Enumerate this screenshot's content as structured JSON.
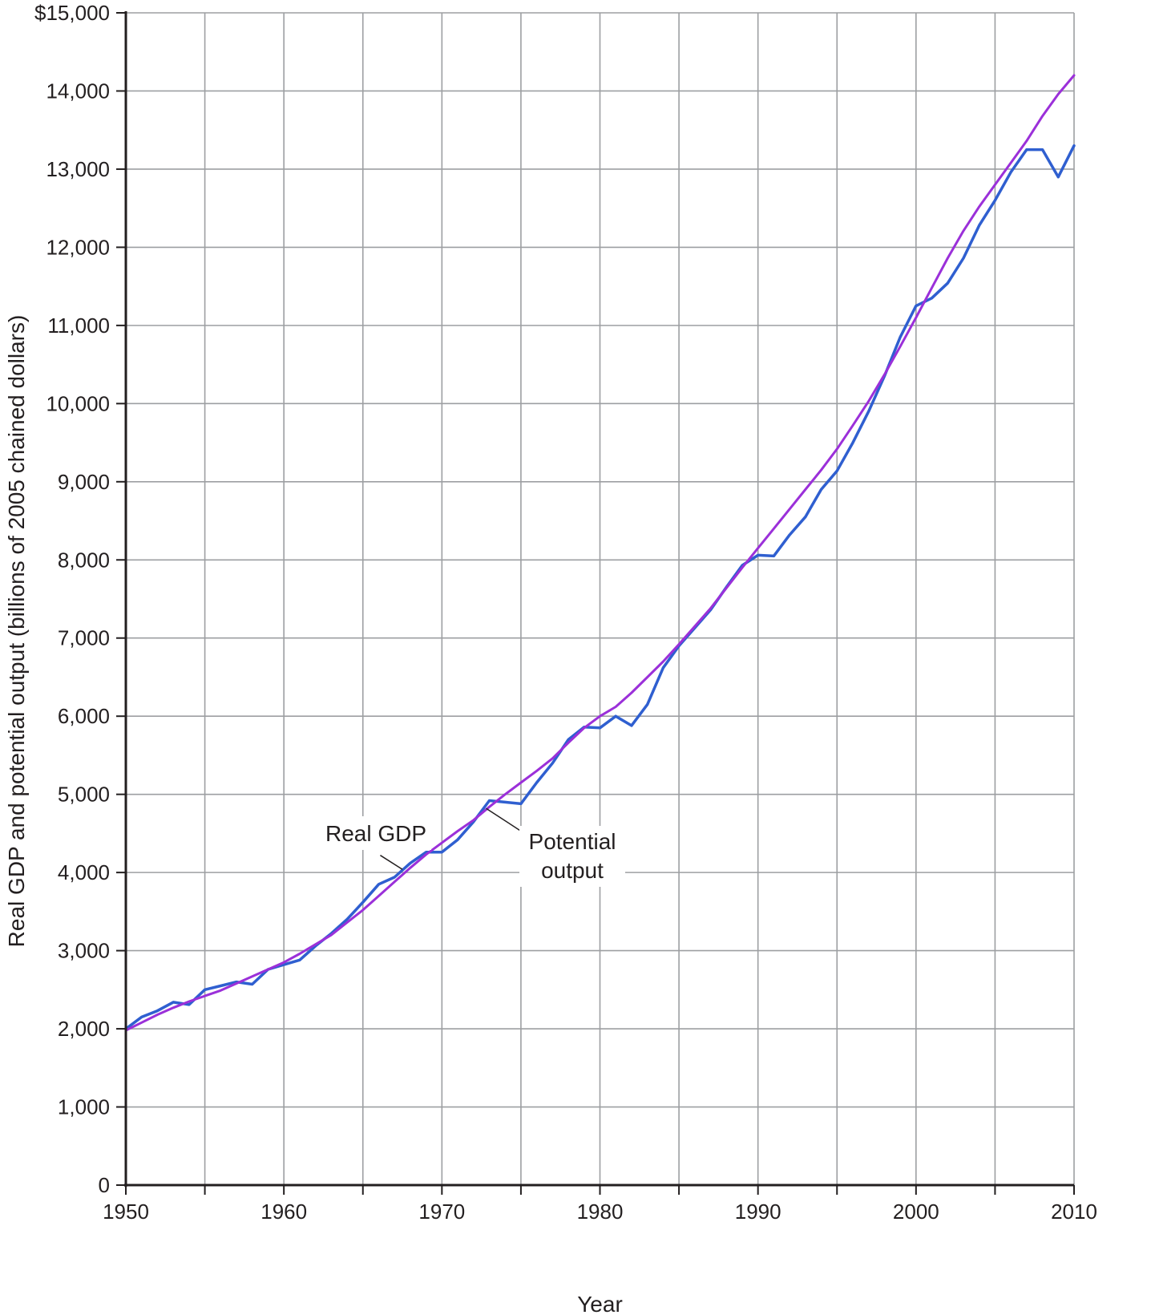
{
  "chart_data": {
    "type": "line",
    "title": "",
    "xlabel": "Year",
    "ylabel": "Real GDP and potential output (billions of 2005 chained dollars)",
    "xlim": [
      1950,
      2010
    ],
    "ylim": [
      0,
      15000
    ],
    "x_ticks": [
      1950,
      1960,
      1970,
      1980,
      1990,
      2000,
      2010
    ],
    "x_tick_labels": [
      "1950",
      "1960",
      "1970",
      "1980",
      "1990",
      "2000",
      "2010"
    ],
    "y_ticks": [
      0,
      1000,
      2000,
      3000,
      4000,
      5000,
      6000,
      7000,
      8000,
      9000,
      10000,
      11000,
      12000,
      13000,
      14000,
      15000
    ],
    "y_tick_labels": [
      "0",
      "1,000",
      "2,000",
      "3,000",
      "4,000",
      "5,000",
      "6,000",
      "7,000",
      "8,000",
      "9,000",
      "10,000",
      "11,000",
      "12,000",
      "13,000",
      "14,000",
      "$15,000"
    ],
    "grid": true,
    "series": [
      {
        "name": "Real GDP",
        "color": "#2f5fd0",
        "x": [
          1950,
          1951,
          1952,
          1953,
          1954,
          1955,
          1956,
          1957,
          1958,
          1959,
          1960,
          1961,
          1962,
          1963,
          1964,
          1965,
          1966,
          1967,
          1968,
          1969,
          1970,
          1971,
          1972,
          1973,
          1974,
          1975,
          1976,
          1977,
          1978,
          1979,
          1980,
          1981,
          1982,
          1983,
          1984,
          1985,
          1986,
          1987,
          1988,
          1989,
          1990,
          1991,
          1992,
          1993,
          1994,
          1995,
          1996,
          1997,
          1998,
          1999,
          2000,
          2001,
          2002,
          2003,
          2004,
          2005,
          2006,
          2007,
          2008,
          2009,
          2010
        ],
        "y": [
          2000,
          2150,
          2230,
          2340,
          2310,
          2500,
          2550,
          2600,
          2570,
          2760,
          2820,
          2880,
          3060,
          3220,
          3400,
          3620,
          3850,
          3940,
          4120,
          4260,
          4260,
          4420,
          4650,
          4920,
          4900,
          4880,
          5150,
          5400,
          5700,
          5860,
          5850,
          6000,
          5880,
          6150,
          6620,
          6900,
          7130,
          7360,
          7650,
          7930,
          8060,
          8050,
          8320,
          8550,
          8900,
          9140,
          9500,
          9900,
          10350,
          10850,
          11250,
          11350,
          11540,
          11860,
          12280,
          12600,
          12960,
          13250,
          13250,
          12900,
          13300
        ]
      },
      {
        "name": "Potential output",
        "color": "#9b30d9",
        "x": [
          1950,
          1951,
          1952,
          1953,
          1954,
          1955,
          1956,
          1957,
          1958,
          1959,
          1960,
          1961,
          1962,
          1963,
          1964,
          1965,
          1966,
          1967,
          1968,
          1969,
          1970,
          1971,
          1972,
          1973,
          1974,
          1975,
          1976,
          1977,
          1978,
          1979,
          1980,
          1981,
          1982,
          1983,
          1984,
          1985,
          1986,
          1987,
          1988,
          1989,
          1990,
          1991,
          1992,
          1993,
          1994,
          1995,
          1996,
          1997,
          1998,
          1999,
          2000,
          2001,
          2002,
          2003,
          2004,
          2005,
          2006,
          2007,
          2008,
          2009,
          2010
        ],
        "y": [
          1980,
          2080,
          2180,
          2270,
          2350,
          2420,
          2490,
          2580,
          2670,
          2760,
          2850,
          2960,
          3080,
          3200,
          3360,
          3520,
          3700,
          3880,
          4060,
          4230,
          4380,
          4530,
          4670,
          4840,
          5000,
          5150,
          5300,
          5460,
          5660,
          5850,
          6000,
          6120,
          6300,
          6500,
          6700,
          6920,
          7150,
          7380,
          7640,
          7900,
          8150,
          8400,
          8650,
          8900,
          9150,
          9420,
          9720,
          10030,
          10370,
          10730,
          11100,
          11480,
          11860,
          12210,
          12520,
          12800,
          13080,
          13360,
          13680,
          13960,
          14200
        ]
      }
    ],
    "annotations": {
      "real_gdp": "Real GDP",
      "potential_line1": "Potential",
      "potential_line2": "output"
    }
  }
}
